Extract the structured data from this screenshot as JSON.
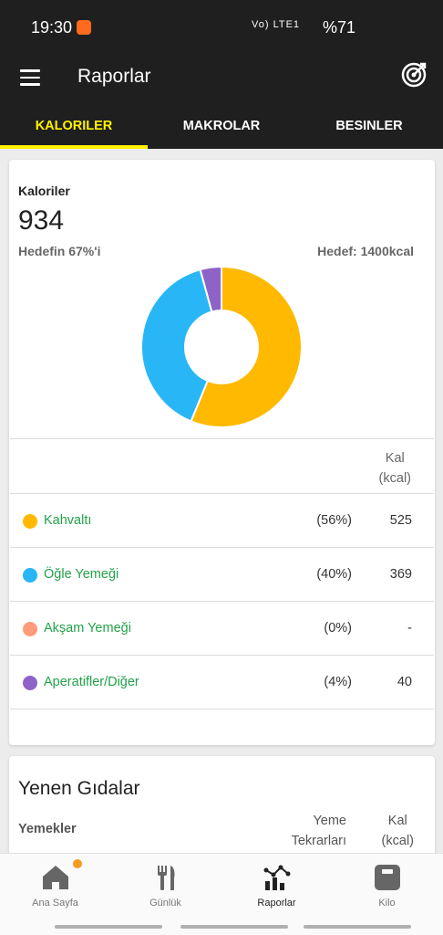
{
  "status_bar": {
    "time": "19:30",
    "network": "Vo) LTE1",
    "battery": "%71"
  },
  "app_bar": {
    "title": "Raporlar"
  },
  "tabs": [
    {
      "label": "KALORILER",
      "active": true
    },
    {
      "label": "MAKROLAR",
      "active": false
    },
    {
      "label": "BESINLER",
      "active": false
    }
  ],
  "calories_card": {
    "label": "Kaloriler",
    "total": "934",
    "percent_of_goal": "Hedefin 67%'i",
    "goal": "Hedef: 1400kcal",
    "col_header_line1": "Kal",
    "col_header_line2": "(kcal)",
    "meals": [
      {
        "name": "Kahvaltı",
        "percent": "(56%)",
        "kcal": "525",
        "color": "#ffb900"
      },
      {
        "name": "Öğle Yemeği",
        "percent": "(40%)",
        "kcal": "369",
        "color": "#29b6f6"
      },
      {
        "name": "Akşam Yemeği",
        "percent": "(0%)",
        "kcal": "-",
        "color": "#ff9a7a"
      },
      {
        "name": "Aperatifler/Diğer",
        "percent": "(4%)",
        "kcal": "40",
        "color": "#8e63c8"
      }
    ]
  },
  "chart_data": {
    "type": "pie",
    "categories": [
      "Kahvaltı",
      "Öğle Yemeği",
      "Akşam Yemeği",
      "Aperatifler/Diğer"
    ],
    "values": [
      525,
      369,
      0,
      40
    ],
    "colors": [
      "#ffb900",
      "#29b6f6",
      "#ff9a7a",
      "#8e63c8"
    ],
    "title": "",
    "donut": true
  },
  "foods_card": {
    "title": "Yenen Gıdalar",
    "col_meals": "Yemekler",
    "col_repeat_line1": "Yeme",
    "col_repeat_line2": "Tekrarları",
    "col_kal_line1": "Kal",
    "col_kal_line2": "(kcal)"
  },
  "bottom_nav": [
    {
      "label": "Ana Sayfa",
      "icon": "home-icon",
      "active": false,
      "badge": true
    },
    {
      "label": "Günlük",
      "icon": "fork-knife-icon",
      "active": false
    },
    {
      "label": "Raporlar",
      "icon": "chart-icon",
      "active": true
    },
    {
      "label": "Kilo",
      "icon": "scale-icon",
      "active": false
    }
  ]
}
